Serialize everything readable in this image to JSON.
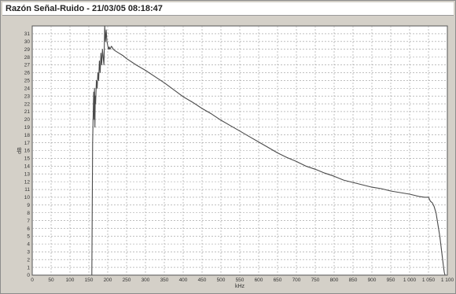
{
  "window": {
    "title": "Razón Señal-Ruido - 21/03/05 08:18:47"
  },
  "chart_data": {
    "type": "line",
    "xlabel": "kHz",
    "ylabel": "dB",
    "xlim": [
      0,
      1100
    ],
    "ylim": [
      0,
      32
    ],
    "grid": true,
    "x_ticks": [
      0,
      50,
      100,
      150,
      200,
      250,
      300,
      350,
      400,
      450,
      500,
      550,
      600,
      650,
      700,
      750,
      800,
      850,
      900,
      950,
      1000,
      1050,
      1100
    ],
    "x_tick_labels": [
      "0",
      "50",
      "100",
      "150",
      "200",
      "250",
      "300",
      "350",
      "400",
      "450",
      "500",
      "550",
      "600",
      "650",
      "700",
      "750",
      "800",
      "850",
      "900",
      "950",
      "1 000",
      "1 050",
      "1 100"
    ],
    "y_ticks": [
      0,
      1,
      2,
      3,
      4,
      5,
      6,
      7,
      8,
      9,
      10,
      11,
      12,
      13,
      14,
      15,
      16,
      17,
      18,
      19,
      20,
      21,
      22,
      23,
      24,
      25,
      26,
      27,
      28,
      29,
      30,
      31
    ],
    "series": [
      {
        "color": "#4a4a4a",
        "x": [
          158,
          160,
          162,
          163,
          164,
          165,
          166,
          167,
          168,
          170,
          172,
          174,
          176,
          178,
          180,
          182,
          184,
          186,
          188,
          190,
          192,
          194,
          196,
          198,
          200,
          202,
          204,
          206,
          208,
          210,
          215,
          220,
          230,
          240,
          250,
          275,
          300,
          325,
          350,
          375,
          400,
          425,
          450,
          475,
          500,
          525,
          550,
          575,
          600,
          625,
          650,
          675,
          700,
          725,
          750,
          775,
          800,
          825,
          850,
          875,
          900,
          925,
          950,
          975,
          1000,
          1025,
          1040,
          1050,
          1055,
          1060,
          1065,
          1070,
          1075,
          1080,
          1085,
          1090,
          1092,
          1094
        ],
        "y": [
          0,
          17,
          22,
          23.5,
          20,
          24,
          19,
          23,
          22,
          25,
          24,
          26,
          25,
          27.5,
          26,
          28.5,
          27,
          29,
          28,
          27,
          32,
          30,
          31.5,
          30,
          29.5,
          29,
          29.3,
          29,
          29.2,
          29.4,
          29,
          28.8,
          28.5,
          28.2,
          27.8,
          27,
          26.3,
          25.5,
          24.7,
          23.8,
          22.9,
          22.2,
          21.4,
          20.7,
          19.9,
          19.2,
          18.5,
          17.8,
          17.1,
          16.4,
          15.7,
          15.1,
          14.6,
          14,
          13.6,
          13.1,
          12.7,
          12.2,
          11.9,
          11.6,
          11.3,
          11.1,
          10.8,
          10.6,
          10.4,
          10.1,
          10,
          10,
          9.5,
          9.3,
          8.8,
          8,
          6.5,
          5,
          3,
          1,
          0.3,
          0
        ]
      }
    ]
  }
}
